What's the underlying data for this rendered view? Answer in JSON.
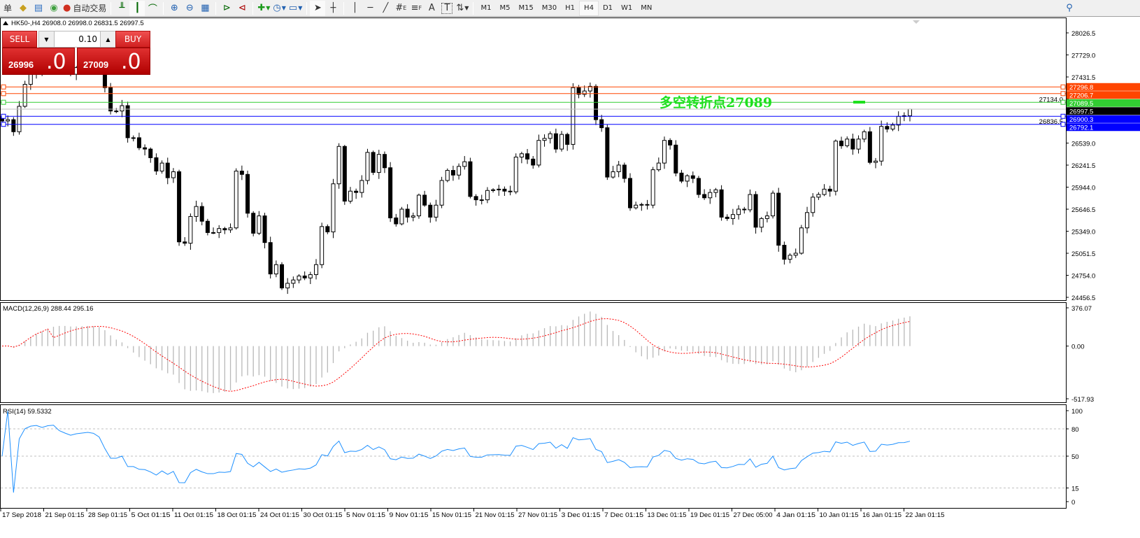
{
  "toolbar": {
    "partial_label": "单",
    "autotrade_label": "自动交易",
    "icons": [
      "market-watch-icon",
      "navigator-icon",
      "signals-icon",
      "autotrade-icon",
      "bar-chart-icon",
      "candlestick-icon",
      "line-chart-icon",
      "zoom-in-icon",
      "zoom-out-icon",
      "tile-windows-icon",
      "autoscroll-icon",
      "chart-shift-icon",
      "new-order-icon",
      "periods-icon",
      "templates-icon",
      "cursor-icon",
      "crosshair-icon",
      "vertical-line-icon",
      "horizontal-line-icon",
      "trendline-icon",
      "fibonacci-expansion-icon",
      "fibonacci-fan-icon",
      "text-icon",
      "text-label-icon",
      "arrows-icon",
      "search-icon"
    ],
    "letters": {
      "fibo_e": "E",
      "fibo_f": "F",
      "text": "A",
      "label": "T"
    },
    "timeframes": [
      "M1",
      "M5",
      "M15",
      "M30",
      "H1",
      "H4",
      "D1",
      "W1",
      "MN"
    ],
    "active_timeframe": "H4"
  },
  "chart": {
    "header": "HK50-,H4  26908.0 26998.0 26831.5 26997.5",
    "annotation": "多空转折点27089",
    "colors": {
      "orange": "#ff4500",
      "green": "#32cd32",
      "blue": "#0000ff",
      "bid": "#c0c0c0",
      "annotation": "#1ee01e",
      "macd_signal": "#ff0000",
      "rsi": "#1e90ff"
    }
  },
  "trade_panel": {
    "sell_label": "SELL",
    "buy_label": "BUY",
    "lot": "0.10",
    "sell_price_main": "26996",
    "sell_price_big": ".0",
    "buy_price_main": "27009",
    "buy_price_big": ".0"
  },
  "price_axis": [
    "28026.5",
    "27729.0",
    "27431.5",
    "27134.0",
    "26836.5",
    "26539.0",
    "26241.5",
    "25944.0",
    "25646.5",
    "25349.0",
    "25051.5",
    "24754.0",
    "24456.5"
  ],
  "price_lines": [
    {
      "label": "27296.8",
      "value": 27296.8,
      "color": "#ff4500"
    },
    {
      "label": "27206.7",
      "value": 27206.7,
      "color": "#ff4500"
    },
    {
      "label": "27089.5",
      "value": 27089.5,
      "color": "#32cd32"
    },
    {
      "label": "26997.5",
      "value": 26997.5,
      "color": "#000000"
    },
    {
      "label": "26900.3",
      "value": 26900.3,
      "color": "#0000ff"
    },
    {
      "label": "26792.1",
      "value": 26792.1,
      "color": "#0000ff"
    }
  ],
  "macd": {
    "label": "MACD(12,26,9) 288.44 295.16",
    "axis": [
      "376.07",
      "0.00",
      "-517.93"
    ]
  },
  "rsi": {
    "label": "RSI(14) 59.5332",
    "axis": [
      "100",
      "80",
      "50",
      "15",
      "0"
    ]
  },
  "time_axis": [
    "17 Sep 2018",
    "21 Sep 01:15",
    "28 Sep 01:15",
    "5 Oct 01:15",
    "11 Oct 01:15",
    "18 Oct 01:15",
    "24 Oct 01:15",
    "30 Oct 01:15",
    "5 Nov 01:15",
    "9 Nov 01:15",
    "15 Nov 01:15",
    "21 Nov 01:15",
    "27 Nov 01:15",
    "3 Dec 01:15",
    "7 Dec 01:15",
    "13 Dec 01:15",
    "19 Dec 01:15",
    "27 Dec 05:00",
    "4 Jan 01:15",
    "10 Jan 01:15",
    "16 Jan 01:15",
    "22 Jan 01:15"
  ],
  "chart_data": {
    "type": "candlestick",
    "symbol": "HK50-",
    "timeframe": "H4",
    "ylim": [
      24456.5,
      28026.5
    ],
    "last_bar": {
      "open": 26908.0,
      "high": 26998.0,
      "low": 26831.5,
      "close": 26997.5
    },
    "closes": [
      26837,
      26855,
      26692,
      27035,
      27332,
      27468,
      27512,
      27485,
      27603,
      27649,
      27558,
      27512,
      27468,
      27558,
      27603,
      27649,
      27630,
      27558,
      27287,
      26972,
      26972,
      27044,
      26611,
      26611,
      26476,
      26458,
      26341,
      26161,
      26269,
      26071,
      26152,
      25205,
      25187,
      25548,
      25683,
      25484,
      25331,
      25331,
      25385,
      25367,
      25394,
      26161,
      26116,
      25592,
      25322,
      25556,
      25196,
      24772,
      24898,
      24583,
      24646,
      24691,
      24745,
      24718,
      24763,
      24898,
      25412,
      25340,
      25989,
      26494,
      25755,
      25890,
      25872,
      26034,
      26413,
      26143,
      26386,
      26206,
      25529,
      25448,
      25647,
      25539,
      25556,
      25836,
      25701,
      25539,
      25701,
      26034,
      26170,
      26107,
      26224,
      26287,
      25818,
      25773,
      25773,
      25899,
      25908,
      25917,
      25890,
      25881,
      26350,
      26395,
      26323,
      26242,
      26575,
      26602,
      26665,
      26458,
      26656,
      26521,
      27287,
      27197,
      27242,
      27305,
      26855,
      26746,
      26080,
      26152,
      26242,
      26062,
      25665,
      25701,
      25710,
      25701,
      26179,
      26269,
      26575,
      26512,
      26134,
      26025,
      26098,
      26062,
      25845,
      25800,
      25872,
      25908,
      25539,
      25520,
      25574,
      25647,
      25638,
      25845,
      25403,
      25520,
      25556,
      25863,
      25160,
      24970,
      25025,
      25052,
      25394,
      25601,
      25809,
      25845,
      25917,
      25890,
      26566,
      26503,
      26593,
      26458,
      26593,
      26692,
      26278,
      26296,
      26764,
      26728,
      26782,
      26899,
      26908,
      26997.5
    ],
    "indicators": [
      {
        "name": "MACD(12,26,9)",
        "main": 288.44,
        "signal": 295.16,
        "range": [
          -517.93,
          376.07
        ]
      },
      {
        "name": "RSI(14)",
        "value": 59.5332,
        "levels": [
          80,
          50,
          15
        ],
        "range": [
          0,
          100
        ]
      }
    ]
  }
}
